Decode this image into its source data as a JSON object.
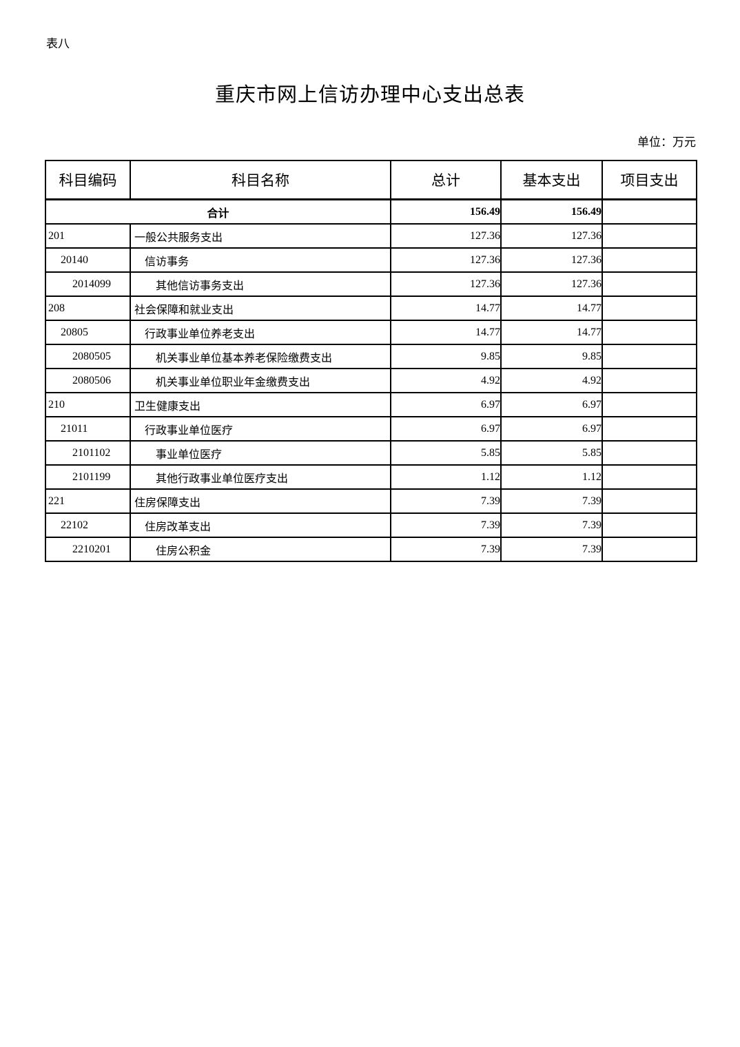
{
  "page": {
    "table_label": "表八",
    "title": "重庆市网上信访办理中心支出总表",
    "unit_label": "单位：万元"
  },
  "colors": {
    "background": "#ffffff",
    "border": "#000000",
    "text": "#000000"
  },
  "table": {
    "columns": [
      "科目编码",
      "科目名称",
      "总计",
      "基本支出",
      "项目支出"
    ],
    "rows": [
      {
        "code": "",
        "name": "合计",
        "total": "156.49",
        "basic": "156.49",
        "project": "",
        "level": 0,
        "bold": true,
        "merge_code_name": true
      },
      {
        "code": "201",
        "name": "一般公共服务支出",
        "total": "127.36",
        "basic": "127.36",
        "project": "",
        "level": 1
      },
      {
        "code": "20140",
        "name": "信访事务",
        "total": "127.36",
        "basic": "127.36",
        "project": "",
        "level": 2
      },
      {
        "code": "2014099",
        "name": "其他信访事务支出",
        "total": "127.36",
        "basic": "127.36",
        "project": "",
        "level": 3
      },
      {
        "code": "208",
        "name": "社会保障和就业支出",
        "total": "14.77",
        "basic": "14.77",
        "project": "",
        "level": 1
      },
      {
        "code": "20805",
        "name": "行政事业单位养老支出",
        "total": "14.77",
        "basic": "14.77",
        "project": "",
        "level": 2
      },
      {
        "code": "2080505",
        "name": "机关事业单位基本养老保险缴费支出",
        "total": "9.85",
        "basic": "9.85",
        "project": "",
        "level": 3
      },
      {
        "code": "2080506",
        "name": "机关事业单位职业年金缴费支出",
        "total": "4.92",
        "basic": "4.92",
        "project": "",
        "level": 3
      },
      {
        "code": "210",
        "name": "卫生健康支出",
        "total": "6.97",
        "basic": "6.97",
        "project": "",
        "level": 1
      },
      {
        "code": "21011",
        "name": "行政事业单位医疗",
        "total": "6.97",
        "basic": "6.97",
        "project": "",
        "level": 2
      },
      {
        "code": "2101102",
        "name": "事业单位医疗",
        "total": "5.85",
        "basic": "5.85",
        "project": "",
        "level": 3
      },
      {
        "code": "2101199",
        "name": "其他行政事业单位医疗支出",
        "total": "1.12",
        "basic": "1.12",
        "project": "",
        "level": 3
      },
      {
        "code": "221",
        "name": "住房保障支出",
        "total": "7.39",
        "basic": "7.39",
        "project": "",
        "level": 1
      },
      {
        "code": "22102",
        "name": "住房改革支出",
        "total": "7.39",
        "basic": "7.39",
        "project": "",
        "level": 2
      },
      {
        "code": "2210201",
        "name": "住房公积金",
        "total": "7.39",
        "basic": "7.39",
        "project": "",
        "level": 3
      }
    ]
  }
}
